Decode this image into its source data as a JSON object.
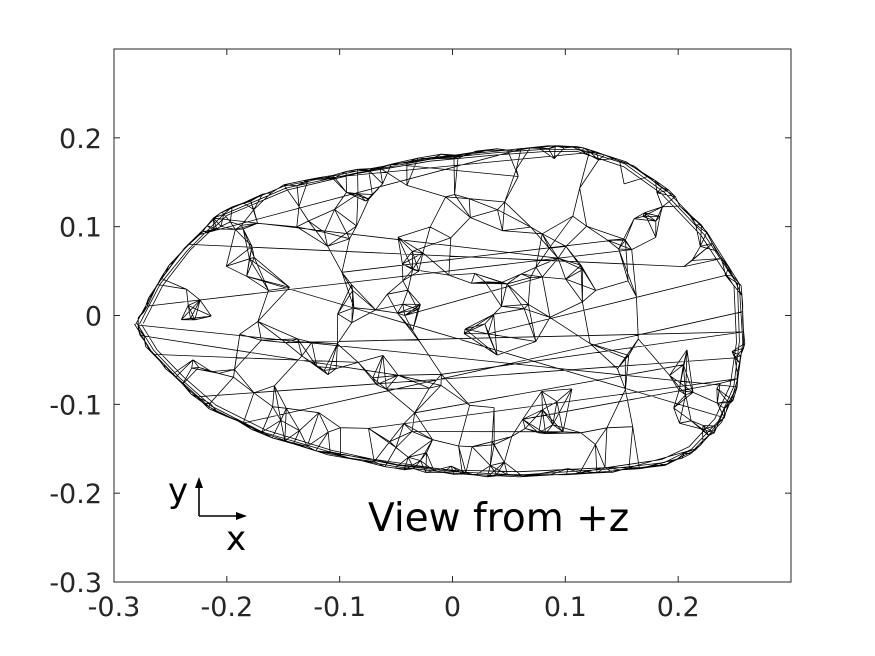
{
  "chart_data": {
    "type": "scatter",
    "subtype": "3d-mesh-wireframe-projection",
    "annotation": "View from +z",
    "axis_indicator": {
      "x_label": "x",
      "y_label": "y"
    },
    "xlim": [
      -0.3,
      0.3
    ],
    "ylim": [
      -0.3,
      0.3
    ],
    "x_ticks": [
      "-0.3",
      "-0.2",
      "-0.1",
      "0",
      "0.1",
      "0.2"
    ],
    "y_ticks": [
      "0.2",
      "0.1",
      "0",
      "-0.1",
      "-0.2",
      "-0.3"
    ],
    "x_tick_values": [
      -0.3,
      -0.2,
      -0.1,
      0,
      0.1,
      0.2
    ],
    "y_tick_values": [
      0.2,
      0.1,
      0,
      -0.1,
      -0.2,
      -0.3
    ],
    "grid": false,
    "outline": {
      "x": [
        -0.28,
        -0.262,
        -0.238,
        -0.205,
        -0.15,
        -0.085,
        -0.02,
        0.04,
        0.085,
        0.115,
        0.155,
        0.19,
        0.225,
        0.255,
        0.258,
        0.252,
        0.238,
        0.215,
        0.19,
        0.14,
        0.06,
        0.0,
        -0.05,
        -0.11,
        -0.17,
        -0.215,
        -0.245,
        -0.268,
        -0.282
      ],
      "y": [
        -0.01,
        0.035,
        0.075,
        0.115,
        0.145,
        0.163,
        0.178,
        0.186,
        0.19,
        0.188,
        0.172,
        0.14,
        0.093,
        0.035,
        -0.03,
        -0.08,
        -0.12,
        -0.152,
        -0.167,
        -0.176,
        -0.181,
        -0.178,
        -0.171,
        -0.156,
        -0.132,
        -0.103,
        -0.07,
        -0.04,
        -0.01
      ]
    },
    "line_color": "#000000"
  }
}
